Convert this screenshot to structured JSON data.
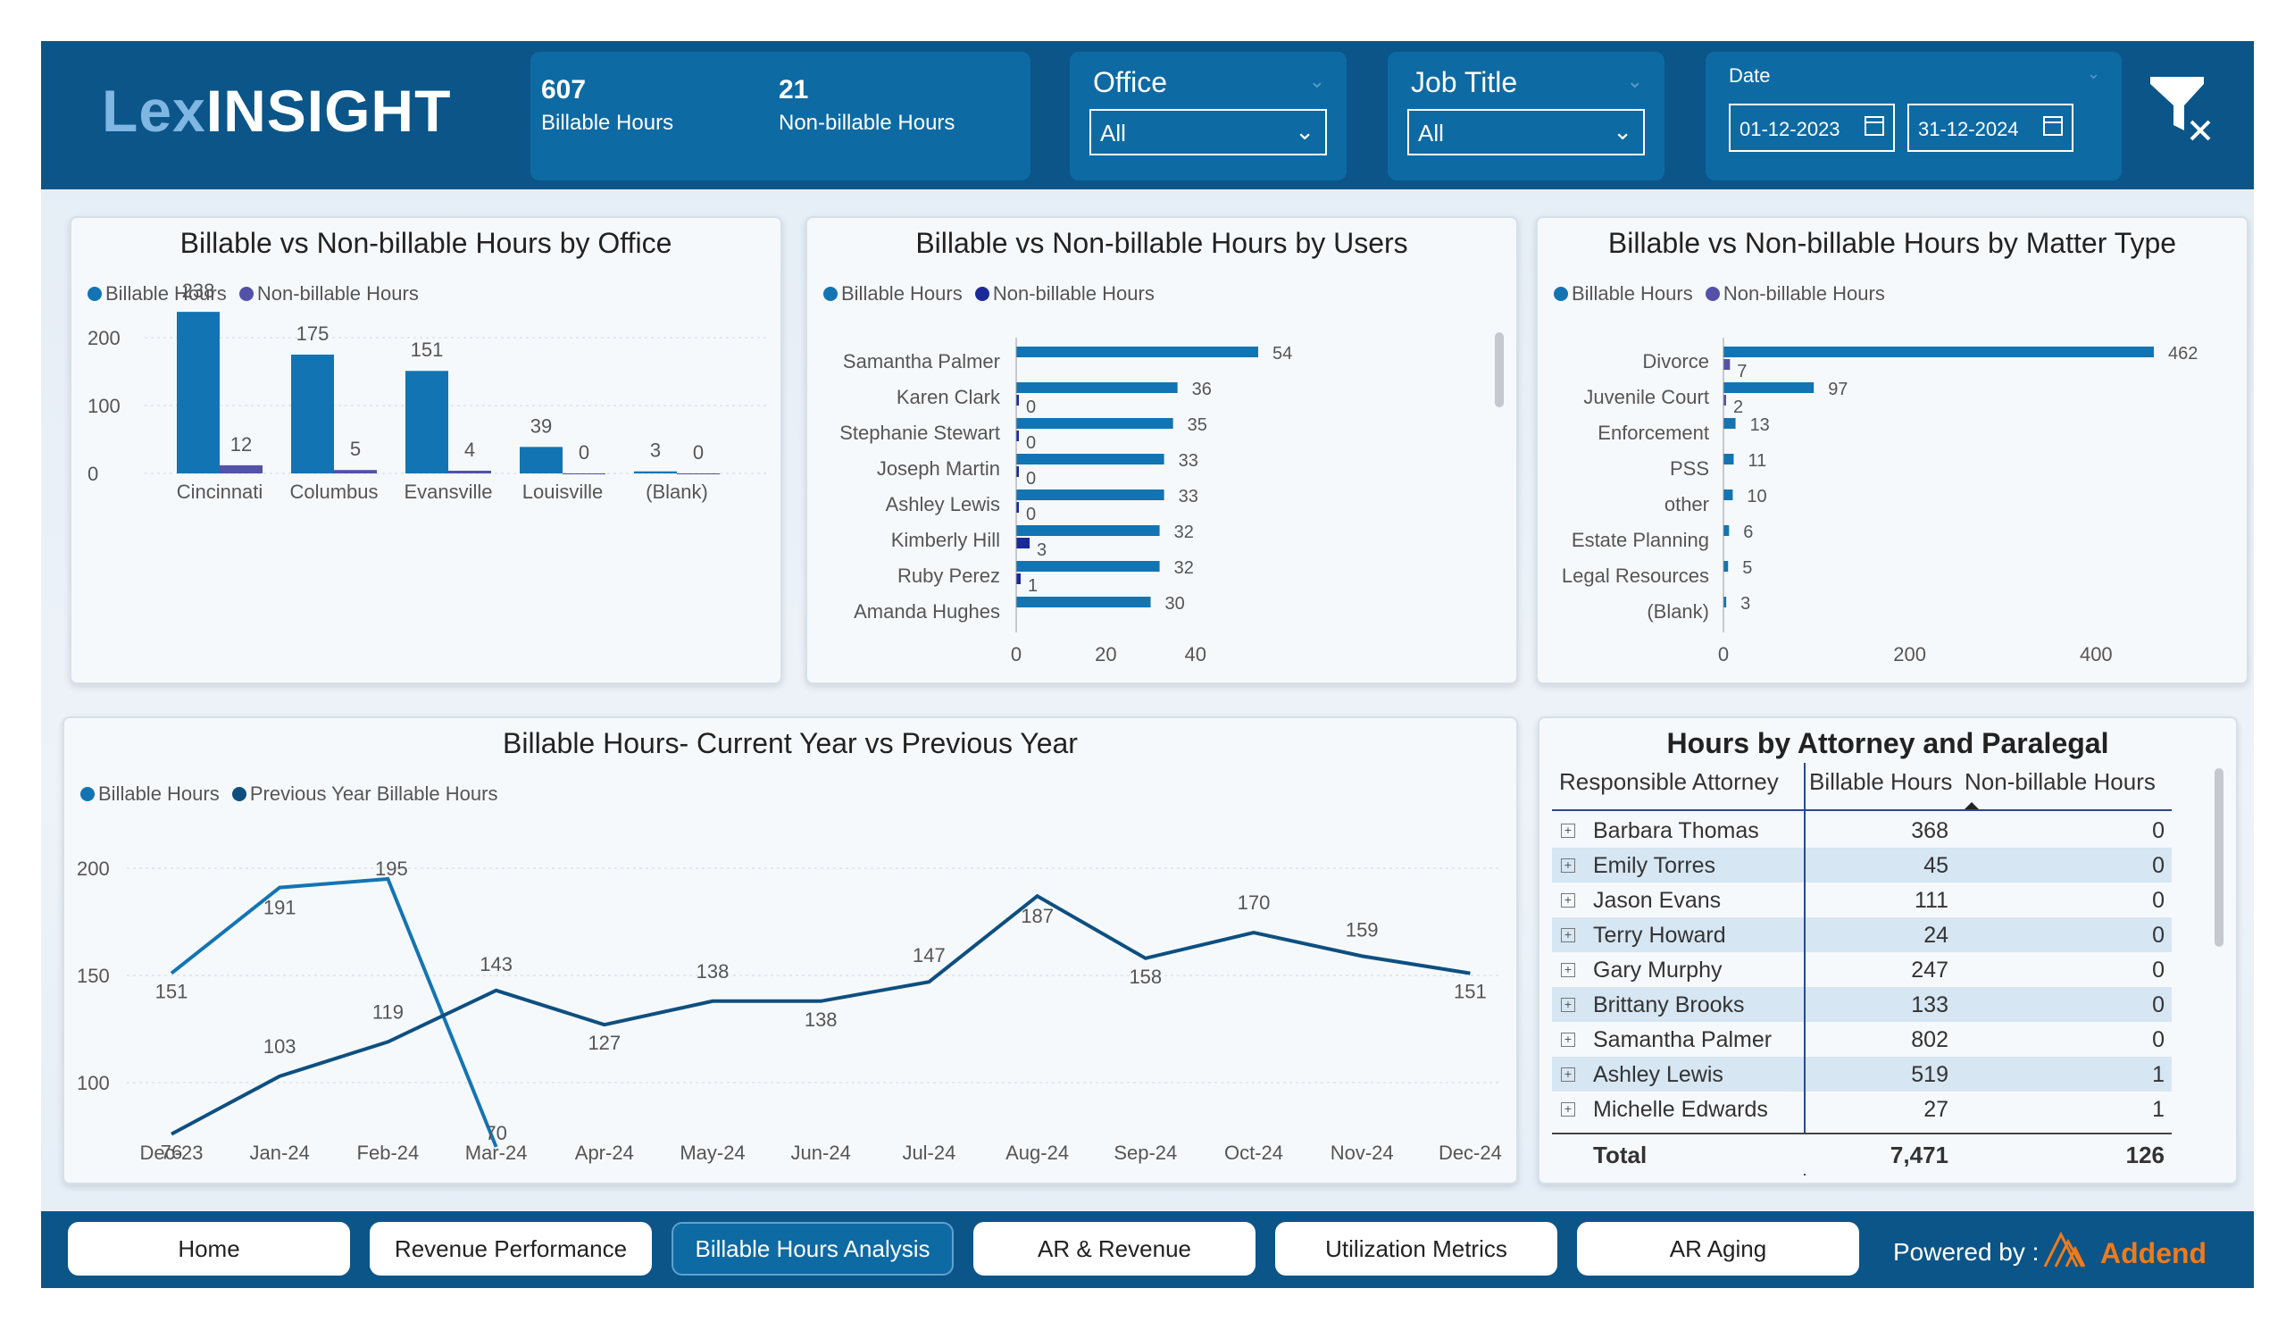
{
  "app": {
    "logo_lex": "Lex",
    "logo_insight": "INSIGHT"
  },
  "kpis": [
    {
      "value": "607",
      "label": "Billable Hours"
    },
    {
      "value": "21",
      "label": "Non-billable Hours"
    }
  ],
  "filters": {
    "office": {
      "title": "Office",
      "value": "All"
    },
    "job_title": {
      "title": "Job Title",
      "value": "All"
    },
    "date": {
      "title": "Date",
      "start": "01-12-2023",
      "end": "31-12-2024"
    }
  },
  "colors": {
    "billable": "#1374b3",
    "nonbillable": "#5451a8",
    "nonbillable_users": "#1b2a9a",
    "prev_year": "#0d4f80",
    "header": "#0b5589"
  },
  "legend": {
    "billable": "Billable Hours",
    "nonbillable": "Non-billable Hours",
    "prev_year": "Previous Year Billable Hours"
  },
  "chart_data": [
    {
      "type": "bar",
      "title": "Billable vs Non-billable Hours by Office",
      "categories": [
        "Cincinnati",
        "Columbus",
        "Evansville",
        "Louisville",
        "(Blank)"
      ],
      "series": [
        {
          "name": "Billable Hours",
          "values": [
            238,
            175,
            151,
            39,
            3
          ]
        },
        {
          "name": "Non-billable Hours",
          "values": [
            12,
            5,
            4,
            0,
            0
          ]
        }
      ],
      "ylim": [
        0,
        260
      ],
      "yticks": [
        "0",
        "100",
        "200"
      ],
      "grid": true,
      "legend": "top-left"
    },
    {
      "type": "bar",
      "orientation": "horizontal",
      "title": "Billable vs Non-billable Hours by Users",
      "categories": [
        "Samantha Palmer",
        "Karen Clark",
        "Stephanie Stewart",
        "Joseph Martin",
        "Ashley Lewis",
        "Kimberly Hill",
        "Ruby Perez",
        "Amanda Hughes"
      ],
      "series": [
        {
          "name": "Billable Hours",
          "values": [
            54,
            36,
            35,
            33,
            33,
            32,
            32,
            30
          ]
        },
        {
          "name": "Non-billable Hours",
          "values": [
            null,
            0,
            0,
            0,
            0,
            3,
            1,
            null
          ]
        }
      ],
      "xlim": [
        0,
        56
      ],
      "xticks": [
        "0",
        "20",
        "40"
      ],
      "legend": "top-left"
    },
    {
      "type": "bar",
      "orientation": "horizontal",
      "title": "Billable vs Non-billable Hours by Matter Type",
      "categories": [
        "Divorce",
        "Juvenile Court",
        "Enforcement",
        "PSS",
        "other",
        "Estate Planning",
        "Legal Resources",
        "(Blank)"
      ],
      "series": [
        {
          "name": "Billable Hours",
          "values": [
            462,
            97,
            13,
            11,
            10,
            6,
            5,
            3
          ]
        },
        {
          "name": "Non-billable Hours",
          "values": [
            7,
            2,
            null,
            null,
            null,
            null,
            null,
            null
          ]
        }
      ],
      "xlim": [
        0,
        480
      ],
      "xticks": [
        "0",
        "200",
        "400"
      ],
      "legend": "top-left"
    },
    {
      "type": "line",
      "title": "Billable Hours- Current Year vs Previous Year",
      "categories": [
        "Dec-23",
        "Jan-24",
        "Feb-24",
        "Mar-24",
        "Apr-24",
        "May-24",
        "Jun-24",
        "Jul-24",
        "Aug-24",
        "Sep-24",
        "Oct-24",
        "Nov-24",
        "Dec-24"
      ],
      "series": [
        {
          "name": "Billable Hours",
          "values": [
            151,
            191,
            195,
            70,
            null,
            null,
            null,
            null,
            null,
            null,
            null,
            null,
            null
          ]
        },
        {
          "name": "Previous Year Billable Hours",
          "values": [
            76,
            103,
            119,
            143,
            127,
            138,
            138,
            147,
            187,
            158,
            170,
            159,
            151
          ]
        }
      ],
      "ylim": [
        70,
        200
      ],
      "yticks": [
        "100",
        "150",
        "200"
      ],
      "grid": true,
      "legend": "top-left"
    }
  ],
  "table": {
    "title": "Hours by Attorney and Paralegal",
    "headers": [
      "Responsible Attorney",
      "Billable Hours",
      "Non-billable Hours"
    ],
    "rows": [
      {
        "name": "Barbara Thomas",
        "billable": "368",
        "nonbillable": "0"
      },
      {
        "name": "Emily Torres",
        "billable": "45",
        "nonbillable": "0"
      },
      {
        "name": "Jason Evans",
        "billable": "111",
        "nonbillable": "0"
      },
      {
        "name": "Terry Howard",
        "billable": "24",
        "nonbillable": "0"
      },
      {
        "name": "Gary Murphy",
        "billable": "247",
        "nonbillable": "0"
      },
      {
        "name": "Brittany Brooks",
        "billable": "133",
        "nonbillable": "0"
      },
      {
        "name": "Samantha Palmer",
        "billable": "802",
        "nonbillable": "0"
      },
      {
        "name": "Ashley Lewis",
        "billable": "519",
        "nonbillable": "1"
      },
      {
        "name": "Michelle Edwards",
        "billable": "27",
        "nonbillable": "1"
      }
    ],
    "total": {
      "label": "Total",
      "billable": "7,471",
      "nonbillable": "126"
    }
  },
  "nav": [
    "Home",
    "Revenue Performance",
    "Billable Hours Analysis",
    "AR & Revenue",
    "Utilization Metrics",
    "AR Aging"
  ],
  "nav_active": "Billable Hours Analysis",
  "footer": {
    "powered_by": "Powered by :",
    "brand": "Addend"
  }
}
